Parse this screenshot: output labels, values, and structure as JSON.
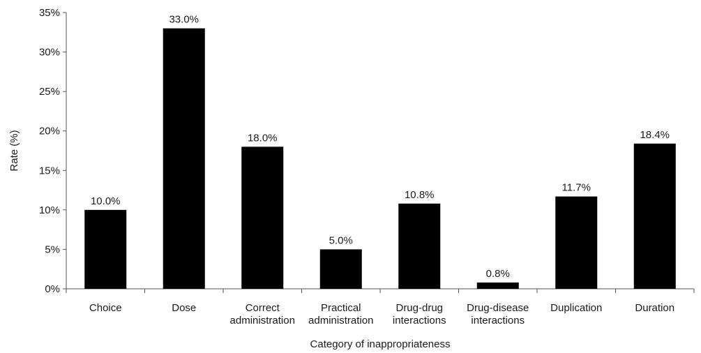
{
  "chart_data": {
    "type": "bar",
    "categories": [
      [
        "Choice"
      ],
      [
        "Dose"
      ],
      [
        "Correct",
        "administration"
      ],
      [
        "Practical",
        "administration"
      ],
      [
        "Drug-drug",
        "interactions"
      ],
      [
        "Drug-disease",
        "interactions"
      ],
      [
        "Duplication"
      ],
      [
        "Duration"
      ]
    ],
    "values": [
      10.0,
      33.0,
      18.0,
      5.0,
      10.8,
      0.8,
      11.7,
      18.4
    ],
    "data_labels": [
      "10.0%",
      "33.0%",
      "18.0%",
      "5.0%",
      "10.8%",
      "0.8%",
      "11.7%",
      "18.4%"
    ],
    "y_ticks": [
      0,
      5,
      10,
      15,
      20,
      25,
      30,
      35
    ],
    "y_tick_labels": [
      "0%",
      "5%",
      "10%",
      "15%",
      "20%",
      "25%",
      "30%",
      "35%"
    ],
    "ylim": [
      0,
      35
    ],
    "xlabel": "Category of inappropriateness",
    "ylabel": "Rate (%)",
    "grid": false,
    "bar_color": "#000000"
  }
}
